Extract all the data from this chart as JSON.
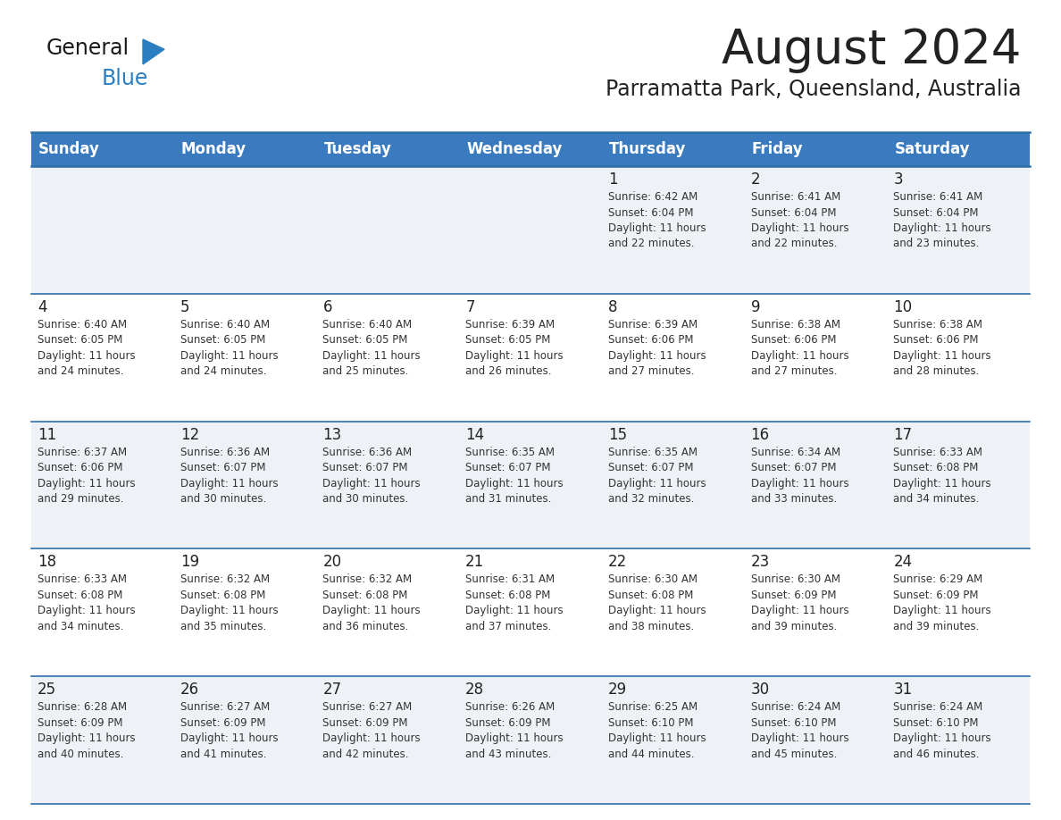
{
  "title": "August 2024",
  "subtitle": "Parramatta Park, Queensland, Australia",
  "header_bg": "#3a7bbf",
  "header_text_color": "#ffffff",
  "header_font_size": 12,
  "title_font_size": 38,
  "subtitle_font_size": 17,
  "day_names": [
    "Sunday",
    "Monday",
    "Tuesday",
    "Wednesday",
    "Thursday",
    "Friday",
    "Saturday"
  ],
  "weeks": [
    [
      {
        "day": "",
        "sunrise": "",
        "sunset": "",
        "daylight": ""
      },
      {
        "day": "",
        "sunrise": "",
        "sunset": "",
        "daylight": ""
      },
      {
        "day": "",
        "sunrise": "",
        "sunset": "",
        "daylight": ""
      },
      {
        "day": "",
        "sunrise": "",
        "sunset": "",
        "daylight": ""
      },
      {
        "day": "1",
        "sunrise": "6:42 AM",
        "sunset": "6:04 PM",
        "daylight": "11 hours and 22 minutes."
      },
      {
        "day": "2",
        "sunrise": "6:41 AM",
        "sunset": "6:04 PM",
        "daylight": "11 hours and 22 minutes."
      },
      {
        "day": "3",
        "sunrise": "6:41 AM",
        "sunset": "6:04 PM",
        "daylight": "11 hours and 23 minutes."
      }
    ],
    [
      {
        "day": "4",
        "sunrise": "6:40 AM",
        "sunset": "6:05 PM",
        "daylight": "11 hours and 24 minutes."
      },
      {
        "day": "5",
        "sunrise": "6:40 AM",
        "sunset": "6:05 PM",
        "daylight": "11 hours and 24 minutes."
      },
      {
        "day": "6",
        "sunrise": "6:40 AM",
        "sunset": "6:05 PM",
        "daylight": "11 hours and 25 minutes."
      },
      {
        "day": "7",
        "sunrise": "6:39 AM",
        "sunset": "6:05 PM",
        "daylight": "11 hours and 26 minutes."
      },
      {
        "day": "8",
        "sunrise": "6:39 AM",
        "sunset": "6:06 PM",
        "daylight": "11 hours and 27 minutes."
      },
      {
        "day": "9",
        "sunrise": "6:38 AM",
        "sunset": "6:06 PM",
        "daylight": "11 hours and 27 minutes."
      },
      {
        "day": "10",
        "sunrise": "6:38 AM",
        "sunset": "6:06 PM",
        "daylight": "11 hours and 28 minutes."
      }
    ],
    [
      {
        "day": "11",
        "sunrise": "6:37 AM",
        "sunset": "6:06 PM",
        "daylight": "11 hours and 29 minutes."
      },
      {
        "day": "12",
        "sunrise": "6:36 AM",
        "sunset": "6:07 PM",
        "daylight": "11 hours and 30 minutes."
      },
      {
        "day": "13",
        "sunrise": "6:36 AM",
        "sunset": "6:07 PM",
        "daylight": "11 hours and 30 minutes."
      },
      {
        "day": "14",
        "sunrise": "6:35 AM",
        "sunset": "6:07 PM",
        "daylight": "11 hours and 31 minutes."
      },
      {
        "day": "15",
        "sunrise": "6:35 AM",
        "sunset": "6:07 PM",
        "daylight": "11 hours and 32 minutes."
      },
      {
        "day": "16",
        "sunrise": "6:34 AM",
        "sunset": "6:07 PM",
        "daylight": "11 hours and 33 minutes."
      },
      {
        "day": "17",
        "sunrise": "6:33 AM",
        "sunset": "6:08 PM",
        "daylight": "11 hours and 34 minutes."
      }
    ],
    [
      {
        "day": "18",
        "sunrise": "6:33 AM",
        "sunset": "6:08 PM",
        "daylight": "11 hours and 34 minutes."
      },
      {
        "day": "19",
        "sunrise": "6:32 AM",
        "sunset": "6:08 PM",
        "daylight": "11 hours and 35 minutes."
      },
      {
        "day": "20",
        "sunrise": "6:32 AM",
        "sunset": "6:08 PM",
        "daylight": "11 hours and 36 minutes."
      },
      {
        "day": "21",
        "sunrise": "6:31 AM",
        "sunset": "6:08 PM",
        "daylight": "11 hours and 37 minutes."
      },
      {
        "day": "22",
        "sunrise": "6:30 AM",
        "sunset": "6:08 PM",
        "daylight": "11 hours and 38 minutes."
      },
      {
        "day": "23",
        "sunrise": "6:30 AM",
        "sunset": "6:09 PM",
        "daylight": "11 hours and 39 minutes."
      },
      {
        "day": "24",
        "sunrise": "6:29 AM",
        "sunset": "6:09 PM",
        "daylight": "11 hours and 39 minutes."
      }
    ],
    [
      {
        "day": "25",
        "sunrise": "6:28 AM",
        "sunset": "6:09 PM",
        "daylight": "11 hours and 40 minutes."
      },
      {
        "day": "26",
        "sunrise": "6:27 AM",
        "sunset": "6:09 PM",
        "daylight": "11 hours and 41 minutes."
      },
      {
        "day": "27",
        "sunrise": "6:27 AM",
        "sunset": "6:09 PM",
        "daylight": "11 hours and 42 minutes."
      },
      {
        "day": "28",
        "sunrise": "6:26 AM",
        "sunset": "6:09 PM",
        "daylight": "11 hours and 43 minutes."
      },
      {
        "day": "29",
        "sunrise": "6:25 AM",
        "sunset": "6:10 PM",
        "daylight": "11 hours and 44 minutes."
      },
      {
        "day": "30",
        "sunrise": "6:24 AM",
        "sunset": "6:10 PM",
        "daylight": "11 hours and 45 minutes."
      },
      {
        "day": "31",
        "sunrise": "6:24 AM",
        "sunset": "6:10 PM",
        "daylight": "11 hours and 46 minutes."
      }
    ]
  ],
  "odd_row_bg": "#eef2f7",
  "even_row_bg": "#ffffff",
  "cell_border_color": "#2d6da8",
  "text_color_day": "#222222",
  "text_color_info": "#333333",
  "logo_general_color": "#1a1a1a",
  "logo_blue_color": "#2b7fc1"
}
